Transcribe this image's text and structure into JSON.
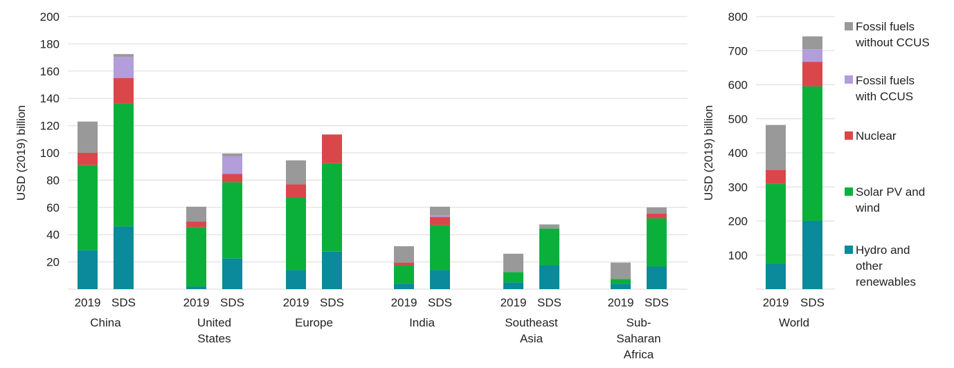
{
  "chart_data": [
    {
      "type": "bar",
      "stacked": true,
      "ylabel": "USD (2019) billion",
      "ylim": [
        0,
        200
      ],
      "yticks": [
        20,
        40,
        60,
        80,
        100,
        120,
        140,
        160,
        180,
        200
      ],
      "grid": true,
      "groups": [
        {
          "name": "China",
          "name_lines": [
            "China"
          ],
          "bars": [
            {
              "label": "2019",
              "values": [
                28.5,
                62.5,
                9,
                0,
                23
              ]
            },
            {
              "label": "SDS",
              "values": [
                46,
                90.5,
                18.5,
                15.5,
                2
              ]
            }
          ]
        },
        {
          "name": "United States",
          "name_lines": [
            "United",
            "States"
          ],
          "bars": [
            {
              "label": "2019",
              "values": [
                2,
                43.5,
                4,
                0,
                11
              ]
            },
            {
              "label": "SDS",
              "values": [
                22.5,
                56,
                6,
                13,
                2
              ]
            }
          ]
        },
        {
          "name": "Europe",
          "name_lines": [
            "Europe"
          ],
          "bars": [
            {
              "label": "2019",
              "values": [
                14,
                53,
                10,
                0,
                17.5
              ]
            },
            {
              "label": "SDS",
              "values": [
                27.5,
                65,
                21,
                0,
                0
              ]
            }
          ]
        },
        {
          "name": "India",
          "name_lines": [
            "India"
          ],
          "bars": [
            {
              "label": "2019",
              "values": [
                4,
                13.5,
                2,
                0,
                12
              ]
            },
            {
              "label": "SDS",
              "values": [
                14,
                33,
                6,
                1,
                6.5
              ]
            }
          ]
        },
        {
          "name": "Southeast Asia",
          "name_lines": [
            "Southeast",
            "Asia"
          ],
          "bars": [
            {
              "label": "2019",
              "values": [
                5,
                7.5,
                0,
                0,
                13.5
              ]
            },
            {
              "label": "SDS",
              "values": [
                17.5,
                27,
                0,
                0,
                3
              ]
            }
          ]
        },
        {
          "name": "Sub-Saharan Africa",
          "name_lines": [
            "Sub-",
            "Saharan",
            "Africa"
          ],
          "bars": [
            {
              "label": "2019",
              "values": [
                4,
                3.5,
                0,
                0,
                12
              ]
            },
            {
              "label": "SDS",
              "values": [
                16.5,
                35.5,
                3.5,
                0,
                4.5
              ]
            }
          ]
        }
      ]
    },
    {
      "type": "bar",
      "stacked": true,
      "ylabel": "USD (2019) billion",
      "ylim": [
        0,
        800
      ],
      "yticks": [
        100,
        200,
        300,
        400,
        500,
        600,
        700,
        800
      ],
      "grid": true,
      "groups": [
        {
          "name": "World",
          "name_lines": [
            "World"
          ],
          "bars": [
            {
              "label": "2019",
              "values": [
                75,
                235,
                40,
                0,
                132
              ]
            },
            {
              "label": "SDS",
              "values": [
                200,
                395,
                72,
                37,
                38
              ]
            }
          ]
        }
      ]
    }
  ],
  "series": [
    {
      "name": "Hydro and other renewables",
      "lines": [
        "Hydro and",
        "other",
        "renewables"
      ],
      "color": "#0a8a9a"
    },
    {
      "name": "Solar PV and wind",
      "lines": [
        "Solar PV and",
        "wind"
      ],
      "color": "#0bb03b"
    },
    {
      "name": "Nuclear",
      "lines": [
        "Nuclear"
      ],
      "color": "#d9474b"
    },
    {
      "name": "Fossil fuels with CCUS",
      "lines": [
        "Fossil fuels",
        "with CCUS"
      ],
      "color": "#b39ddb"
    },
    {
      "name": "Fossil fuels without CCUS",
      "lines": [
        "Fossil fuels",
        "without CCUS"
      ],
      "color": "#999999"
    }
  ],
  "legend": {
    "placement": "right",
    "order": [
      4,
      3,
      2,
      1,
      0
    ]
  }
}
